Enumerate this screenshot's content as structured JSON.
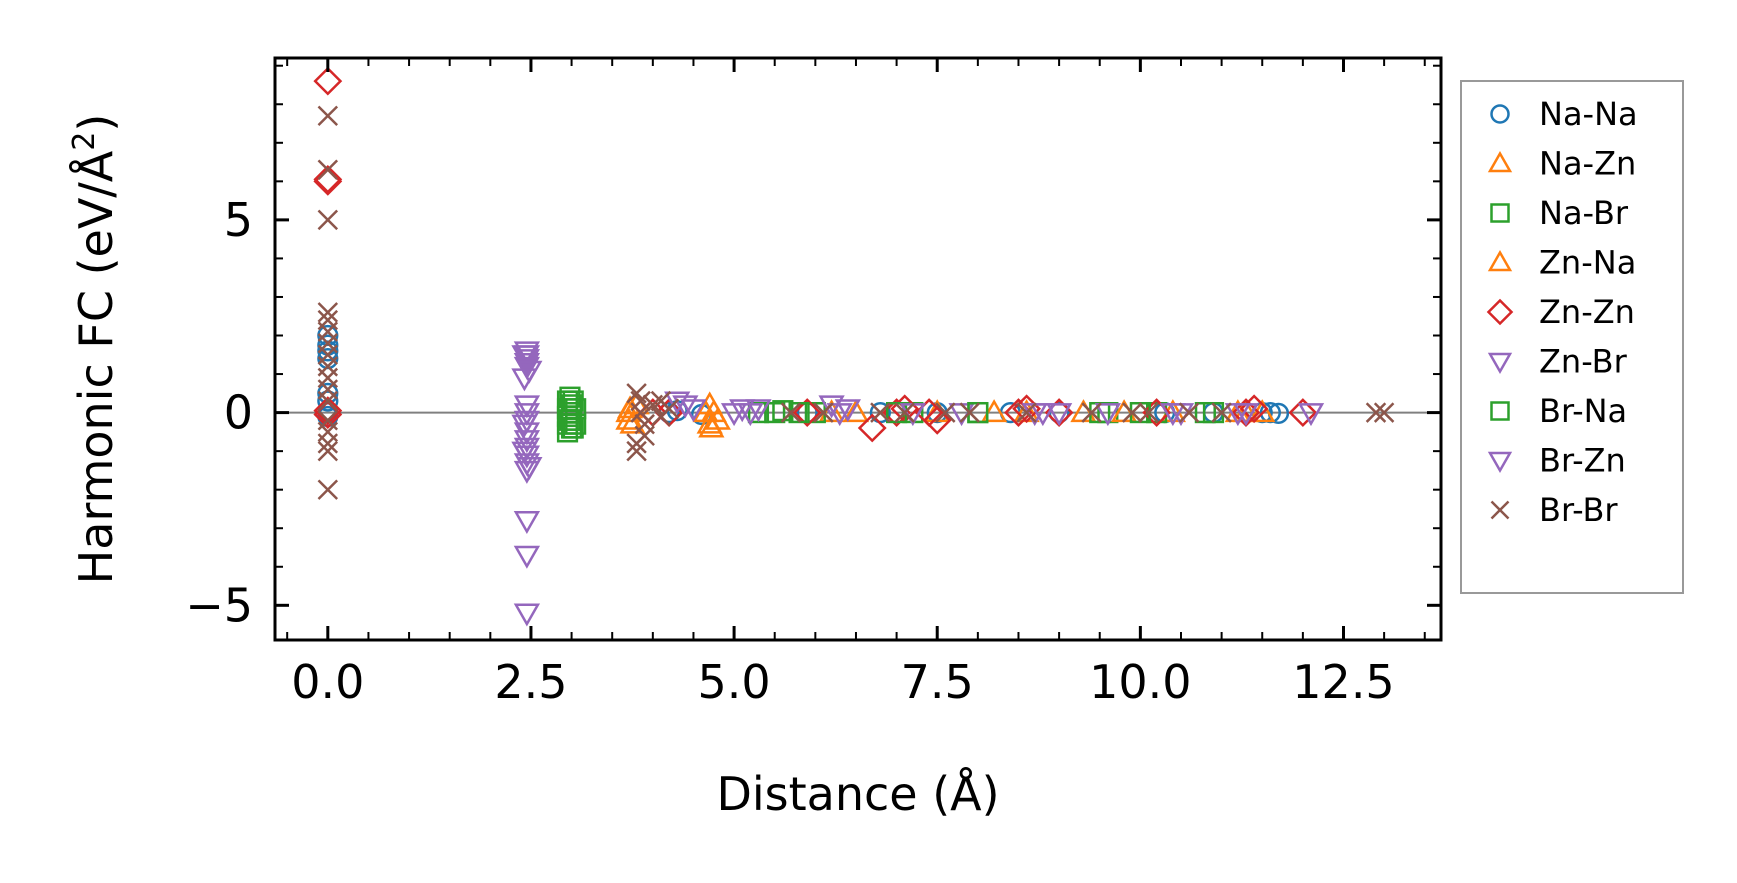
{
  "chart_data": {
    "type": "scatter",
    "title": "",
    "xlabel": "Distance (Å)",
    "ylabel_main": "Harmonic FC (eV/Å",
    "ylabel_sup": "2",
    "ylabel_close": ")",
    "xlim": [
      -0.65,
      13.7
    ],
    "ylim": [
      -5.9,
      9.2
    ],
    "xticks": [
      0.0,
      2.5,
      5.0,
      7.5,
      10.0,
      12.5
    ],
    "xtick_labels": [
      "0.0",
      "2.5",
      "5.0",
      "7.5",
      "10.0",
      "12.5"
    ],
    "yticks": [
      -5,
      0,
      5
    ],
    "ytick_labels": [
      "−5",
      "0",
      "5"
    ],
    "zero_line": 0,
    "legend_position": "outside-right",
    "series": [
      {
        "name": "Na-Na",
        "marker": "circle",
        "color": "#1f77b4",
        "points": [
          [
            0,
            1.4
          ],
          [
            0,
            1.6
          ],
          [
            0,
            1.75
          ],
          [
            0,
            2.0
          ],
          [
            0,
            0.5
          ],
          [
            0,
            0.3
          ],
          [
            0,
            0.0
          ],
          [
            0,
            -0.1
          ],
          [
            4.2,
            0.0
          ],
          [
            4.3,
            0.05
          ],
          [
            4.6,
            -0.05
          ],
          [
            5.9,
            0.0
          ],
          [
            6.8,
            0.0
          ],
          [
            7.5,
            0.0
          ],
          [
            8.4,
            0.0
          ],
          [
            9.0,
            0.0
          ],
          [
            10.3,
            0.0
          ],
          [
            10.9,
            0.0
          ],
          [
            11.5,
            0.0
          ],
          [
            11.6,
            0.0
          ],
          [
            11.7,
            -0.02
          ]
        ]
      },
      {
        "name": "Na-Zn",
        "marker": "triangle-up",
        "color": "#ff7f0e",
        "points": [
          [
            3.7,
            0.0
          ],
          [
            3.75,
            -0.3
          ],
          [
            3.8,
            0.2
          ],
          [
            4.7,
            0.2
          ],
          [
            4.7,
            -0.3
          ],
          [
            4.75,
            0.0
          ],
          [
            6.2,
            0.0
          ],
          [
            7.5,
            0.0
          ],
          [
            8.6,
            0.0
          ],
          [
            9.3,
            0.0
          ],
          [
            10.4,
            0.0
          ],
          [
            11.2,
            0.0
          ],
          [
            11.5,
            0.0
          ]
        ]
      },
      {
        "name": "Na-Br",
        "marker": "square",
        "color": "#2ca02c",
        "points": [
          [
            2.95,
            0.3
          ],
          [
            2.95,
            0.1
          ],
          [
            2.95,
            -0.1
          ],
          [
            2.95,
            -0.3
          ],
          [
            2.95,
            -0.5
          ],
          [
            3.0,
            0.2
          ],
          [
            3.0,
            0.0
          ],
          [
            3.0,
            -0.2
          ],
          [
            3.0,
            -0.4
          ],
          [
            3.05,
            0.1
          ],
          [
            3.05,
            -0.3
          ],
          [
            5.3,
            0.0
          ],
          [
            5.6,
            0.05
          ],
          [
            6.0,
            0.0
          ],
          [
            7.2,
            0.0
          ],
          [
            8.0,
            0.0
          ],
          [
            9.6,
            0.0
          ],
          [
            10.2,
            0.0
          ],
          [
            10.9,
            0.0
          ]
        ]
      },
      {
        "name": "Zn-Na",
        "marker": "triangle-up",
        "color": "#ff7f0e",
        "points": [
          [
            3.7,
            -0.2
          ],
          [
            3.72,
            0.1
          ],
          [
            4.65,
            0.0
          ],
          [
            4.72,
            -0.4
          ],
          [
            4.8,
            -0.2
          ],
          [
            6.5,
            0.0
          ],
          [
            8.2,
            0.0
          ],
          [
            9.8,
            0.0
          ],
          [
            11.3,
            0.0
          ]
        ]
      },
      {
        "name": "Zn-Zn",
        "marker": "diamond",
        "color": "#d62728",
        "points": [
          [
            0,
            8.6
          ],
          [
            0,
            6.05
          ],
          [
            0,
            6.0
          ],
          [
            0,
            0.05
          ],
          [
            0,
            -0.05
          ],
          [
            4.0,
            0.0
          ],
          [
            4.2,
            0.0
          ],
          [
            5.9,
            0.0
          ],
          [
            6.7,
            -0.4
          ],
          [
            7.0,
            0.0
          ],
          [
            7.1,
            0.1
          ],
          [
            7.4,
            0.0
          ],
          [
            7.5,
            -0.2
          ],
          [
            8.5,
            0.0
          ],
          [
            8.6,
            0.1
          ],
          [
            9.0,
            0.0
          ],
          [
            10.2,
            0.0
          ],
          [
            11.3,
            0.0
          ],
          [
            11.4,
            0.1
          ],
          [
            12.0,
            0.0
          ]
        ]
      },
      {
        "name": "Zn-Br",
        "marker": "triangle-down",
        "color": "#9467bd",
        "points": [
          [
            2.45,
            1.6
          ],
          [
            2.45,
            1.5
          ],
          [
            2.45,
            1.4
          ],
          [
            2.45,
            1.3
          ],
          [
            2.45,
            1.2
          ],
          [
            2.45,
            0.2
          ],
          [
            2.45,
            0.0
          ],
          [
            2.45,
            -0.2
          ],
          [
            2.45,
            -0.5
          ],
          [
            2.45,
            -0.7
          ],
          [
            2.45,
            -0.9
          ],
          [
            2.45,
            -1.1
          ],
          [
            2.45,
            -1.3
          ],
          [
            2.45,
            -1.5
          ],
          [
            2.45,
            -2.8
          ],
          [
            2.45,
            -3.7
          ],
          [
            2.45,
            -5.2
          ],
          [
            4.3,
            0.3
          ],
          [
            4.5,
            0.1
          ],
          [
            5.1,
            0.1
          ],
          [
            5.2,
            0.0
          ],
          [
            6.2,
            0.2
          ],
          [
            6.4,
            0.1
          ],
          [
            7.8,
            0.0
          ],
          [
            8.8,
            0.0
          ],
          [
            9.0,
            0.0
          ],
          [
            10.5,
            0.0
          ],
          [
            11.3,
            0.0
          ],
          [
            12.1,
            0.0
          ]
        ]
      },
      {
        "name": "Br-Na",
        "marker": "square",
        "color": "#2ca02c",
        "points": [
          [
            2.98,
            0.4
          ],
          [
            2.98,
            -0.2
          ],
          [
            3.02,
            0.3
          ],
          [
            3.02,
            -0.4
          ],
          [
            5.5,
            0.0
          ],
          [
            5.8,
            0.0
          ],
          [
            7.0,
            0.0
          ],
          [
            8.0,
            0.0
          ],
          [
            9.5,
            0.0
          ],
          [
            10.0,
            0.0
          ],
          [
            10.8,
            0.0
          ]
        ]
      },
      {
        "name": "Br-Zn",
        "marker": "triangle-down",
        "color": "#9467bd",
        "points": [
          [
            2.42,
            1.5
          ],
          [
            2.42,
            0.9
          ],
          [
            2.42,
            -0.3
          ],
          [
            2.42,
            -1.0
          ],
          [
            2.48,
            -1.4
          ],
          [
            2.48,
            1.1
          ],
          [
            4.4,
            0.2
          ],
          [
            5.0,
            0.0
          ],
          [
            5.3,
            0.1
          ],
          [
            6.3,
            0.0
          ],
          [
            7.2,
            0.0
          ],
          [
            8.7,
            0.0
          ],
          [
            9.6,
            0.0
          ],
          [
            10.4,
            0.0
          ],
          [
            11.2,
            0.0
          ]
        ]
      },
      {
        "name": "Br-Br",
        "marker": "x",
        "color": "#8c564b",
        "points": [
          [
            0,
            7.7
          ],
          [
            0,
            6.3
          ],
          [
            0,
            5.0
          ],
          [
            0,
            2.6
          ],
          [
            0,
            2.4
          ],
          [
            0,
            2.1
          ],
          [
            0,
            1.8
          ],
          [
            0,
            1.5
          ],
          [
            0,
            1.2
          ],
          [
            0,
            0.9
          ],
          [
            0,
            0.6
          ],
          [
            0,
            0.3
          ],
          [
            0,
            -0.2
          ],
          [
            0,
            -0.5
          ],
          [
            0,
            -0.8
          ],
          [
            0,
            -1.0
          ],
          [
            0,
            -2.0
          ],
          [
            3.8,
            0.5
          ],
          [
            3.85,
            0.3
          ],
          [
            3.85,
            0.0
          ],
          [
            3.9,
            -0.3
          ],
          [
            3.9,
            -0.6
          ],
          [
            3.8,
            -0.8
          ],
          [
            3.8,
            -1.0
          ],
          [
            4.0,
            0.2
          ],
          [
            4.1,
            0.3
          ],
          [
            4.1,
            -0.1
          ],
          [
            4.2,
            0.1
          ],
          [
            5.7,
            0.0
          ],
          [
            6.1,
            0.0
          ],
          [
            6.8,
            0.0
          ],
          [
            7.1,
            0.0
          ],
          [
            7.6,
            0.0
          ],
          [
            7.9,
            0.0
          ],
          [
            8.6,
            0.0
          ],
          [
            9.4,
            0.0
          ],
          [
            9.9,
            0.0
          ],
          [
            10.1,
            0.0
          ],
          [
            10.6,
            0.0
          ],
          [
            11.0,
            0.0
          ],
          [
            12.9,
            0.0
          ],
          [
            13.0,
            0.0
          ]
        ]
      }
    ]
  }
}
